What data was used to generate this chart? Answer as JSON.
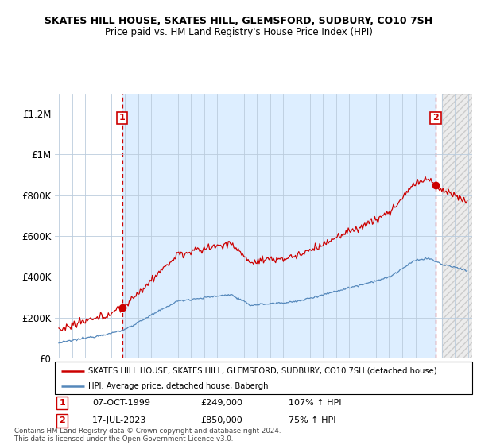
{
  "title": "SKATES HILL HOUSE, SKATES HILL, GLEMSFORD, SUDBURY, CO10 7SH",
  "subtitle": "Price paid vs. HM Land Registry's House Price Index (HPI)",
  "legend_line1": "SKATES HILL HOUSE, SKATES HILL, GLEMSFORD, SUDBURY, CO10 7SH (detached house)",
  "legend_line2": "HPI: Average price, detached house, Babergh",
  "footnote": "Contains HM Land Registry data © Crown copyright and database right 2024.\nThis data is licensed under the Open Government Licence v3.0.",
  "sale1_date": "07-OCT-1999",
  "sale1_price": "£249,000",
  "sale1_hpi": "107% ↑ HPI",
  "sale2_date": "17-JUL-2023",
  "sale2_price": "£850,000",
  "sale2_hpi": "75% ↑ HPI",
  "red_color": "#cc0000",
  "blue_color": "#5588bb",
  "shade_color": "#ddeeff",
  "background_color": "#ffffff",
  "grid_color": "#bbccdd",
  "ylim": [
    0,
    1300000
  ],
  "yticks": [
    0,
    200000,
    400000,
    600000,
    800000,
    1000000,
    1200000
  ],
  "ytick_labels": [
    "£0",
    "£200K",
    "£400K",
    "£600K",
    "£800K",
    "£1M",
    "£1.2M"
  ],
  "sale1_x": 1999.79,
  "sale1_y": 249000,
  "sale2_x": 2023.54,
  "sale2_y": 850000,
  "xmin": 1994.7,
  "xmax": 2026.3,
  "hatch_start": 2024.0
}
